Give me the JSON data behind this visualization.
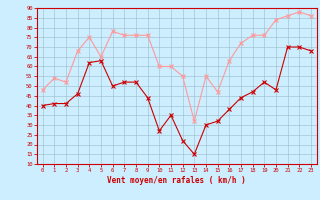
{
  "hours": [
    0,
    1,
    2,
    3,
    4,
    5,
    6,
    7,
    8,
    9,
    10,
    11,
    12,
    13,
    14,
    15,
    16,
    17,
    18,
    19,
    20,
    21,
    22,
    23
  ],
  "wind_avg": [
    40,
    41,
    41,
    46,
    62,
    63,
    50,
    52,
    52,
    44,
    27,
    35,
    22,
    15,
    30,
    32,
    38,
    44,
    47,
    52,
    48,
    70,
    70,
    68
  ],
  "wind_gust": [
    48,
    54,
    52,
    68,
    75,
    65,
    78,
    76,
    76,
    76,
    60,
    60,
    55,
    32,
    55,
    47,
    63,
    72,
    76,
    76,
    84,
    86,
    88,
    86
  ],
  "avg_color": "#cc0000",
  "gust_color": "#ff9999",
  "bg_color": "#cceeff",
  "grid_color": "#99bbcc",
  "xlabel": "Vent moyen/en rafales ( km/h )",
  "xlabel_color": "#cc0000",
  "tick_color": "#cc0000",
  "ylim": [
    10,
    90
  ],
  "yticks": [
    10,
    15,
    20,
    25,
    30,
    35,
    40,
    45,
    50,
    55,
    60,
    65,
    70,
    75,
    80,
    85,
    90
  ],
  "xlim": [
    -0.5,
    23.5
  ],
  "marker_size": 2.5,
  "line_width": 0.8
}
